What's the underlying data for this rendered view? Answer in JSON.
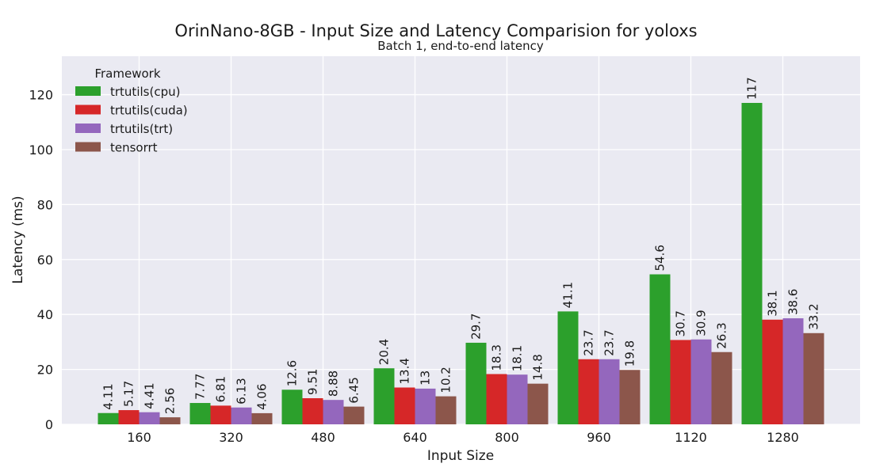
{
  "chart_data": {
    "type": "bar",
    "title": "OrinNano-8GB - Input Size and Latency Comparision for yoloxs",
    "subtitle": "Batch 1, end-to-end latency",
    "xlabel": "Input Size",
    "ylabel": "Latency (ms)",
    "ylim": [
      0,
      134
    ],
    "yticks": [
      "0",
      "20",
      "40",
      "60",
      "80",
      "100",
      "120"
    ],
    "categories": [
      "160",
      "320",
      "480",
      "640",
      "800",
      "960",
      "1120",
      "1280"
    ],
    "legend": {
      "title": "Framework",
      "position": "top-left"
    },
    "grid": true,
    "series": [
      {
        "name": "trtutils(cpu)",
        "color": "#2ca02c",
        "values": [
          4.11,
          7.77,
          12.6,
          20.4,
          29.7,
          41.1,
          54.6,
          117
        ],
        "labels": [
          "4.11",
          "7.77",
          "12.6",
          "20.4",
          "29.7",
          "41.1",
          "54.6",
          "117"
        ]
      },
      {
        "name": "trtutils(cuda)",
        "color": "#d62728",
        "values": [
          5.17,
          6.81,
          9.51,
          13.4,
          18.3,
          23.7,
          30.7,
          38.1
        ],
        "labels": [
          "5.17",
          "6.81",
          "9.51",
          "13.4",
          "18.3",
          "23.7",
          "30.7",
          "38.1"
        ]
      },
      {
        "name": "trtutils(trt)",
        "color": "#9467bd",
        "values": [
          4.41,
          6.13,
          8.88,
          13,
          18.1,
          23.7,
          30.9,
          38.6
        ],
        "labels": [
          "4.41",
          "6.13",
          "8.88",
          "13",
          "18.1",
          "23.7",
          "30.9",
          "38.6"
        ]
      },
      {
        "name": "tensorrt",
        "color": "#8c564b",
        "values": [
          2.56,
          4.06,
          6.45,
          10.2,
          14.8,
          19.8,
          26.3,
          33.2
        ],
        "labels": [
          "2.56",
          "4.06",
          "6.45",
          "10.2",
          "14.8",
          "19.8",
          "26.3",
          "33.2"
        ]
      }
    ]
  }
}
